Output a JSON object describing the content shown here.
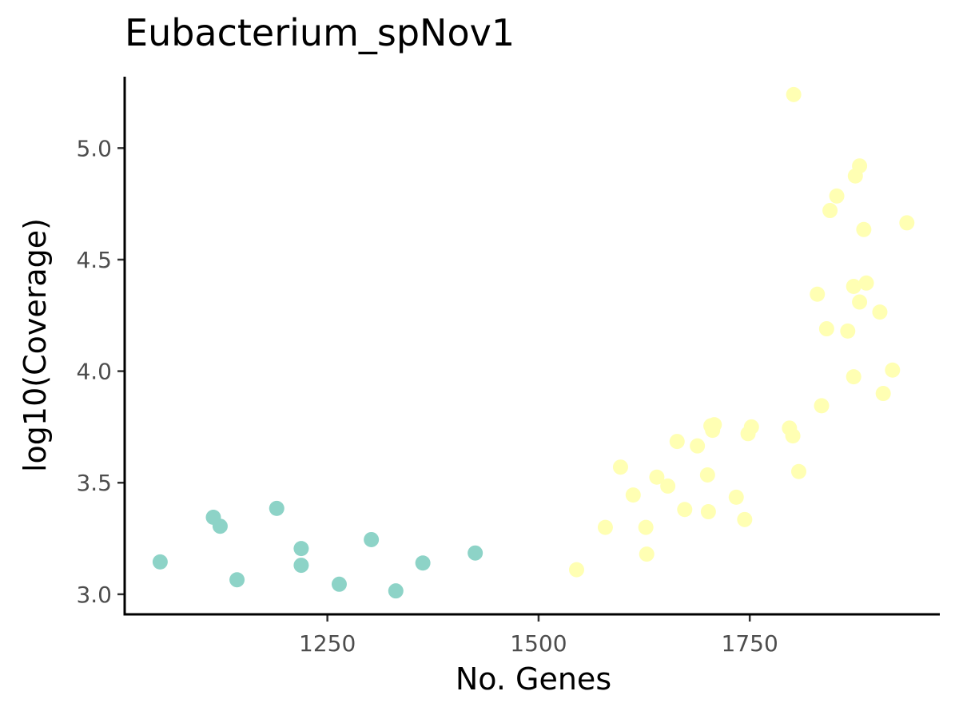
{
  "chart_data": {
    "type": "scatter",
    "title": "Eubacterium_spNov1",
    "xlabel": "No. Genes",
    "ylabel": "log10(Coverage)",
    "xlim": [
      1010,
      1975
    ],
    "ylim": [
      2.91,
      5.32
    ],
    "x_ticks": [
      1250,
      1500,
      1750
    ],
    "x_tick_labels": [
      "1250",
      "1500",
      "1750"
    ],
    "y_ticks": [
      3.0,
      3.5,
      4.0,
      4.5,
      5.0
    ],
    "y_tick_labels": [
      "3.0",
      "3.5",
      "4.0",
      "4.5",
      "5.0"
    ],
    "grid": false,
    "legend": "none",
    "series": [
      {
        "color": "#8dd3c7",
        "x": [
          1052,
          1115,
          1123,
          1143,
          1190,
          1219,
          1219,
          1264,
          1302,
          1331,
          1363,
          1425
        ],
        "y": [
          3.145,
          3.345,
          3.305,
          3.065,
          3.385,
          3.205,
          3.13,
          3.045,
          3.245,
          3.015,
          3.14,
          3.185
        ]
      },
      {
        "color": "#ffffb3",
        "x": [
          1545,
          1579,
          1597,
          1612,
          1627,
          1628,
          1640,
          1653,
          1664,
          1673,
          1688,
          1700,
          1701,
          1704,
          1706,
          1708,
          1734,
          1744,
          1748,
          1752,
          1797,
          1801,
          1802,
          1808,
          1830,
          1835,
          1841,
          1845,
          1853,
          1866,
          1873,
          1873,
          1875,
          1880,
          1880,
          1885,
          1888,
          1904,
          1908,
          1919,
          1936
        ],
        "y": [
          3.11,
          3.3,
          3.57,
          3.445,
          3.3,
          3.18,
          3.525,
          3.485,
          3.685,
          3.38,
          3.665,
          3.535,
          3.37,
          3.755,
          3.735,
          3.76,
          3.435,
          3.335,
          3.72,
          3.75,
          3.745,
          3.71,
          5.24,
          3.55,
          4.345,
          3.845,
          4.19,
          4.72,
          4.785,
          4.18,
          3.975,
          4.38,
          4.875,
          4.31,
          4.92,
          4.635,
          4.395,
          4.265,
          3.9,
          4.005,
          4.665
        ]
      }
    ]
  }
}
